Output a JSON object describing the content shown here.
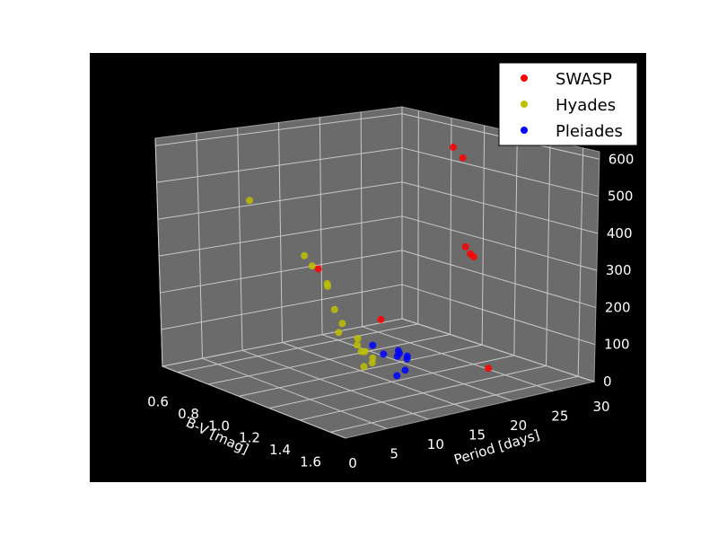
{
  "chart_data": {
    "type": "scatter",
    "projection": "3d",
    "background": "#000000",
    "pane_color": "#6b6b6b",
    "grid": true,
    "legend_position": "top-right",
    "axes": {
      "x": {
        "label": "B-V [mag]",
        "ticks": [
          "0.6",
          "0.8",
          "1.0",
          "1.2",
          "1.4",
          "1.6"
        ],
        "range": [
          0.5,
          1.7
        ]
      },
      "y": {
        "label": "Period [days]",
        "ticks": [
          "0",
          "5",
          "10",
          "15",
          "20",
          "25",
          "30"
        ],
        "range": [
          0,
          30
        ]
      },
      "z": {
        "label": "",
        "ticks": [
          "0",
          "100",
          "200",
          "300",
          "400",
          "500",
          "600"
        ],
        "range": [
          0,
          620
        ]
      }
    },
    "series": [
      {
        "name": "SWASP",
        "color": "#ff0000",
        "points": [
          [
            0.92,
            28,
            535
          ],
          [
            0.98,
            28,
            515
          ],
          [
            1.1,
            26,
            300
          ],
          [
            1.13,
            26,
            285
          ],
          [
            1.15,
            26,
            280
          ],
          [
            1.45,
            22,
            40
          ],
          [
            1.5,
            8,
            250
          ],
          [
            1.2,
            6,
            350
          ]
        ]
      },
      {
        "name": "Hyades",
        "color": "#bfbf00",
        "points": [
          [
            0.65,
            8,
            440
          ],
          [
            0.9,
            10,
            320
          ],
          [
            0.95,
            10,
            300
          ],
          [
            1.05,
            10,
            260
          ],
          [
            1.1,
            9,
            280
          ],
          [
            1.2,
            8,
            230
          ],
          [
            1.25,
            8,
            200
          ],
          [
            1.28,
            7,
            185
          ],
          [
            1.35,
            8,
            175
          ],
          [
            1.4,
            7,
            170
          ],
          [
            1.45,
            7,
            160
          ],
          [
            1.5,
            7,
            150
          ],
          [
            1.48,
            6,
            170
          ],
          [
            1.55,
            6,
            150
          ],
          [
            1.55,
            5,
            145
          ]
        ]
      },
      {
        "name": "Pleiades",
        "color": "#0000ff",
        "points": [
          [
            1.2,
            14,
            80
          ],
          [
            1.35,
            14,
            90
          ],
          [
            1.3,
            15,
            85
          ],
          [
            1.25,
            15,
            85
          ],
          [
            1.4,
            12,
            130
          ],
          [
            1.5,
            10,
            140
          ],
          [
            1.55,
            10,
            110
          ],
          [
            1.55,
            9,
            100
          ],
          [
            1.5,
            7,
            185
          ]
        ]
      }
    ]
  }
}
